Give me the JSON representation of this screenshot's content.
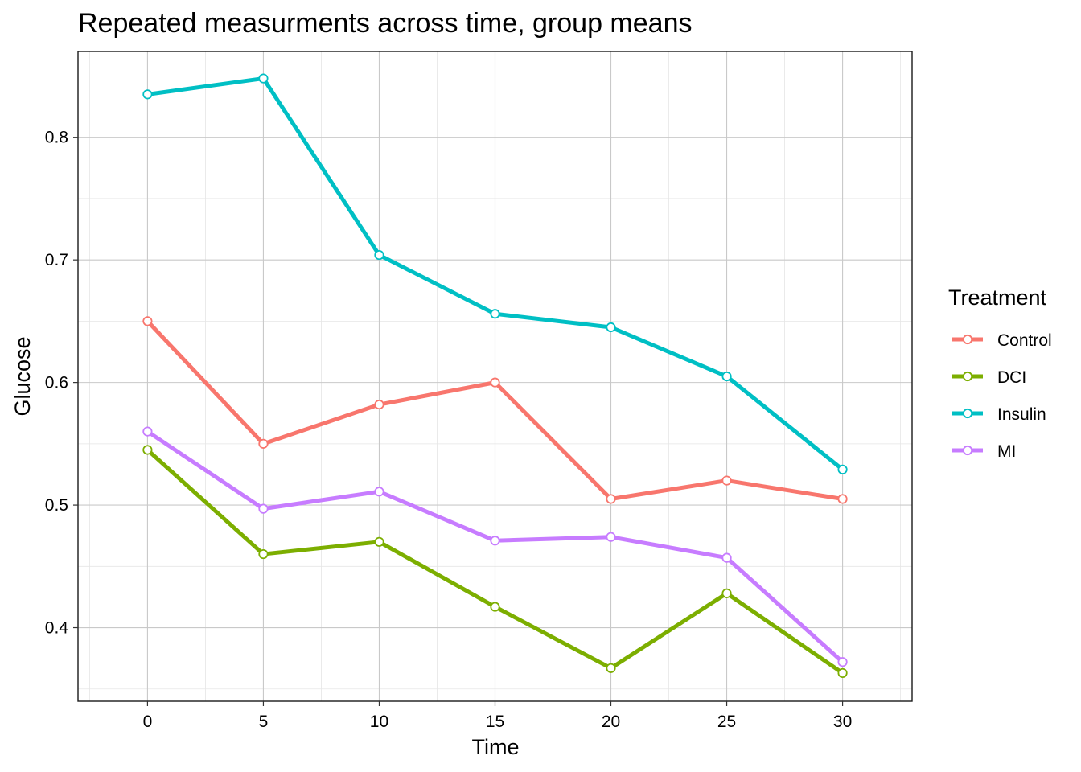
{
  "chart_data": {
    "type": "line",
    "title": "Repeated measurments across time, group means",
    "xlabel": "Time",
    "ylabel": "Glucose",
    "x": [
      0,
      5,
      10,
      15,
      20,
      25,
      30
    ],
    "xlim": [
      -3,
      33
    ],
    "ylim": [
      0.34,
      0.87
    ],
    "x_ticks": [
      "0",
      "5",
      "10",
      "15",
      "20",
      "25",
      "30"
    ],
    "y_ticks": [
      "0.4",
      "0.5",
      "0.6",
      "0.7",
      "0.8"
    ],
    "grid": true,
    "legend": {
      "title": "Treatment",
      "placement": "right"
    },
    "series": [
      {
        "name": "Control",
        "color": "#F8766D",
        "values": [
          0.65,
          0.55,
          0.582,
          0.6,
          0.505,
          0.52,
          0.505
        ]
      },
      {
        "name": "DCI",
        "color": "#7CAE00",
        "values": [
          0.545,
          0.46,
          0.47,
          0.417,
          0.367,
          0.428,
          0.363
        ]
      },
      {
        "name": "Insulin",
        "color": "#00BFC4",
        "values": [
          0.835,
          0.848,
          0.704,
          0.656,
          0.645,
          0.605,
          0.529
        ]
      },
      {
        "name": "MI",
        "color": "#C77CFF",
        "values": [
          0.56,
          0.497,
          0.511,
          0.471,
          0.474,
          0.457,
          0.372
        ]
      }
    ]
  }
}
